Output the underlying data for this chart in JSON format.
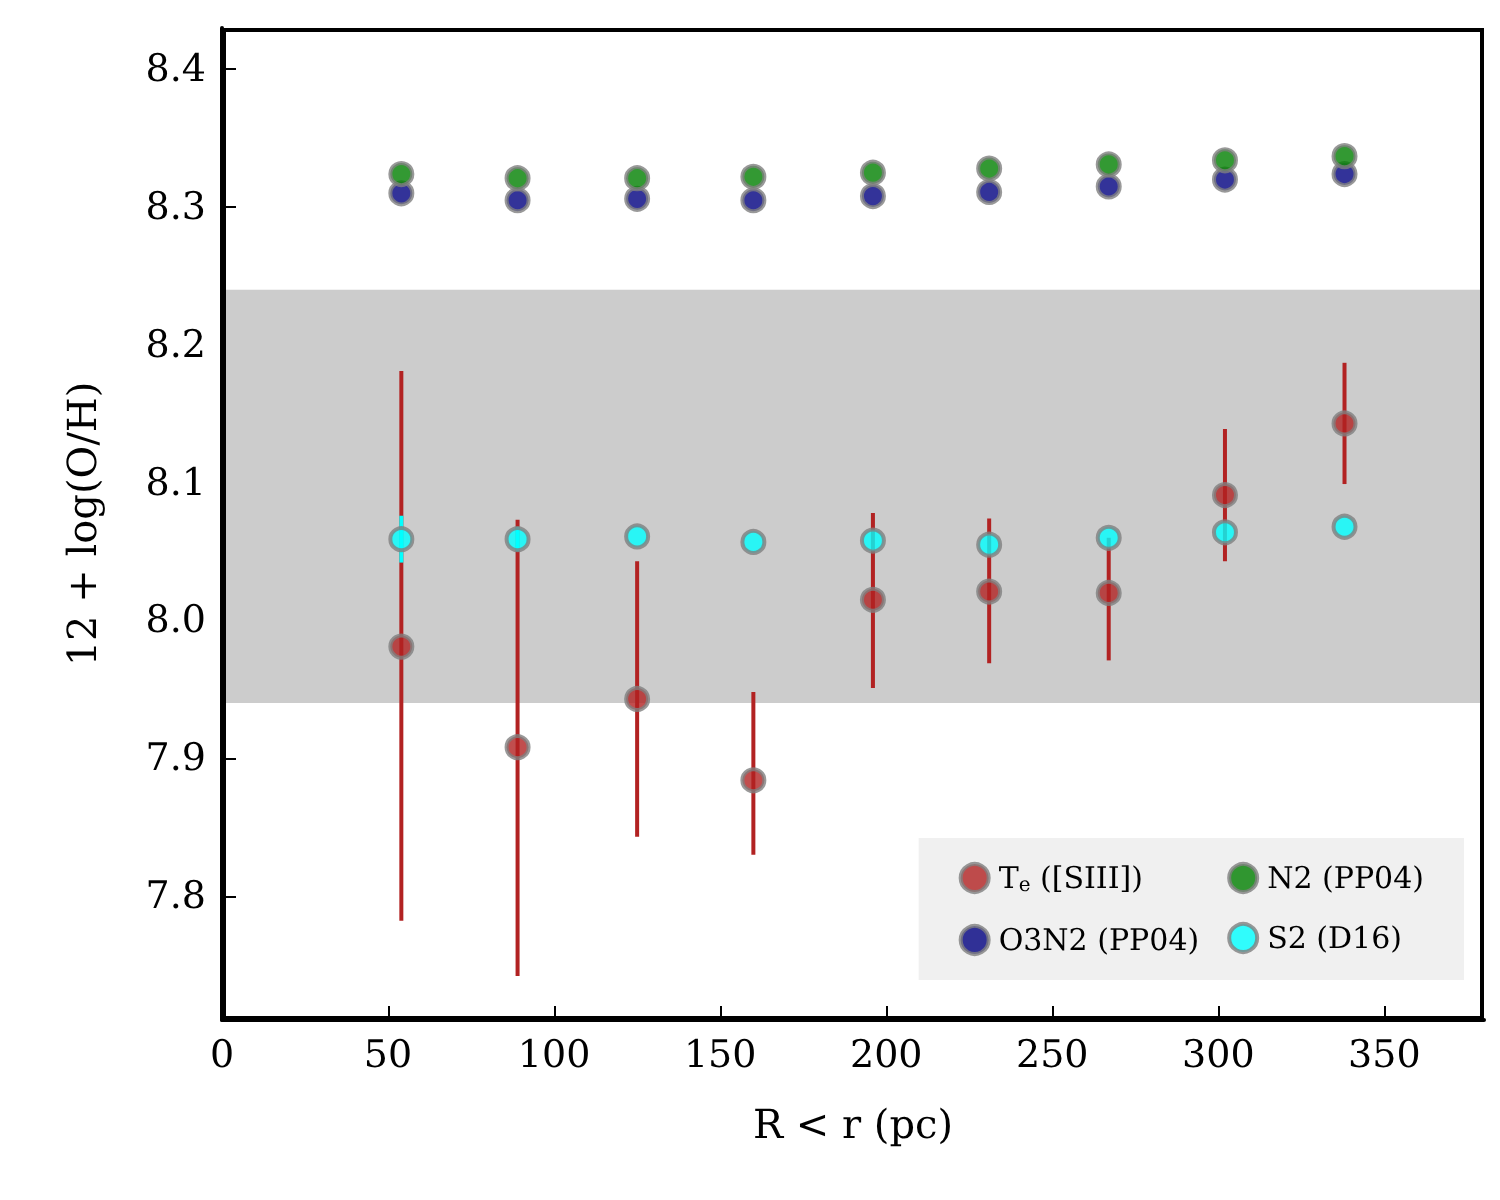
{
  "chart_data": {
    "type": "scatter",
    "xlabel": "R < r (pc)",
    "ylabel": "12 + log(O/H)",
    "x": [
      54,
      89,
      125,
      160,
      196,
      231,
      267,
      302,
      338
    ],
    "series": [
      {
        "name": "T$_{e}$ ([SIII])",
        "color": "#b22222",
        "values": [
          7.981,
          7.908,
          7.943,
          7.884,
          8.015,
          8.021,
          8.02,
          8.091,
          8.143
        ],
        "errors": [
          [
            7.782,
            8.181
          ],
          [
            7.742,
            8.073
          ],
          [
            7.843,
            8.043
          ],
          [
            7.83,
            7.948
          ],
          [
            7.951,
            8.078
          ],
          [
            7.969,
            8.074
          ],
          [
            7.971,
            8.06
          ],
          [
            8.043,
            8.139
          ],
          [
            8.099,
            8.187
          ]
        ]
      },
      {
        "name": "O3N2 (PP04)",
        "color": "#000080",
        "values": [
          8.31,
          8.305,
          8.306,
          8.305,
          8.308,
          8.311,
          8.315,
          8.32,
          8.324
        ]
      },
      {
        "name": "N2 (PP04)",
        "color": "#008000",
        "values": [
          8.324,
          8.321,
          8.321,
          8.322,
          8.325,
          8.328,
          8.331,
          8.334,
          8.337
        ]
      },
      {
        "name": "S2 (D16)",
        "color": "#00ffff",
        "values": [
          8.059,
          8.059,
          8.061,
          8.057,
          8.058,
          8.055,
          8.06,
          8.064,
          8.068
        ],
        "errors": [
          [
            8.042,
            8.076
          ],
          [
            8.05,
            8.068
          ],
          null,
          null,
          null,
          null,
          null,
          null,
          null
        ]
      }
    ],
    "xlim": [
      0,
      380
    ],
    "xticks": [
      0,
      50,
      100,
      150,
      200,
      250,
      300,
      350
    ],
    "ylim": [
      7.71,
      8.43
    ],
    "yticks": [
      7.8,
      7.9,
      {
        "value": 8,
        "label": "8.0"
      },
      8.1,
      8.2,
      8.3,
      8.4
    ],
    "bands": [
      {
        "axis": "y",
        "from": 7.94,
        "to": 8.24,
        "color": "#cccccc"
      }
    ],
    "grid": false,
    "legend": "bottom right",
    "marker": "circle"
  }
}
